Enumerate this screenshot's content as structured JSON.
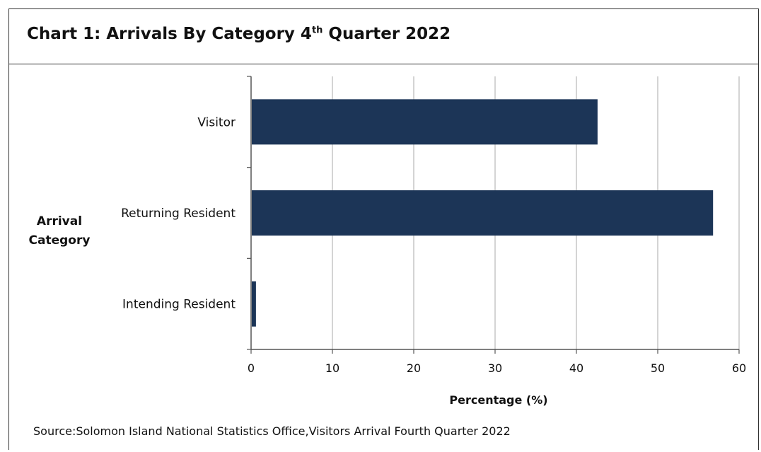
{
  "title": {
    "prefix": "Chart 1: Arrivals By Category 4",
    "superscript": "th",
    "suffix": " Quarter 2022"
  },
  "source": "Source:Solomon Island National Statistics Office,Visitors Arrival Fourth  Quarter 2022",
  "colors": {
    "bar": "#1c3557",
    "grid": "#b8b8b8",
    "axis": "#555555"
  },
  "chart_data": {
    "type": "bar",
    "orientation": "horizontal",
    "categories": [
      "Visitor",
      "Returning Resident",
      "Intending Resident"
    ],
    "values": [
      42.6,
      56.8,
      0.6
    ],
    "xlabel": "Percentage (%)",
    "ylabel": [
      "Arrival",
      "Category"
    ],
    "xlim": [
      0,
      60
    ],
    "xticks": [
      0,
      10,
      20,
      30,
      40,
      50,
      60
    ],
    "grid": "vertical",
    "legend": "none"
  }
}
